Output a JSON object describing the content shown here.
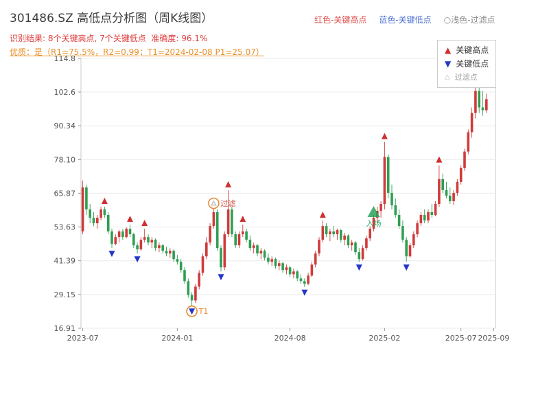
{
  "header": {
    "title": "301486.SZ 高低点分析图（周K线图）",
    "legend_high": "红色-关键高点",
    "legend_low": "蓝色-关键低点",
    "legend_filtered": "○浅色-过滤点",
    "result_line": "识别结果: 8个关键高点, 7个关键低点  准确度: 96.1%",
    "quality_line": "优质：是（R1=75.5%，R2=0.99；T1=2024-02-08 P1=25.07）"
  },
  "chart_legend": {
    "high": "关键高点",
    "low": "关键低点",
    "filtered": "过滤点"
  },
  "chart_data": {
    "type": "candlestick",
    "title": "301486.SZ 高低点分析图（周K线图）",
    "frequency": "weekly",
    "start_date": "2023-07",
    "weeks_span": 114,
    "ylim": [
      16.91,
      114.8
    ],
    "y_ticks": [
      "114.8",
      "102.6",
      "90.34",
      "78.10",
      "65.87",
      "53.63",
      "41.39",
      "29.15",
      "16.91"
    ],
    "x_ticks": [
      {
        "label": "2023-07",
        "week": 0
      },
      {
        "label": "2024-01",
        "week": 26
      },
      {
        "label": "2024-08",
        "week": 57
      },
      {
        "label": "2025-02",
        "week": 83
      },
      {
        "label": "2025-07",
        "week": 104
      },
      {
        "label": "2025-09",
        "week": 113
      }
    ],
    "colors": {
      "up": "#cf3b3b",
      "down": "#2f9e52",
      "key_high": "#d02f2f",
      "key_low": "#2438c8",
      "filtered": "#b9b9b9",
      "circle": "#e8872c",
      "entry": "#27a35a"
    },
    "candles": [
      [
        52,
        70.5,
        51,
        68
      ],
      [
        68,
        69,
        58,
        60
      ],
      [
        60,
        62,
        55,
        57
      ],
      [
        57,
        59,
        54,
        55
      ],
      [
        55,
        58,
        53,
        57
      ],
      [
        57,
        61,
        56,
        60
      ],
      [
        60,
        61,
        57,
        58
      ],
      [
        58,
        59,
        51,
        52
      ],
      [
        52,
        53,
        46,
        47.5
      ],
      [
        47.5,
        51,
        47,
        50
      ],
      [
        50,
        52.5,
        48,
        52
      ],
      [
        52,
        53,
        49,
        50
      ],
      [
        50,
        53.5,
        49.5,
        53
      ],
      [
        53,
        54.5,
        50,
        51
      ],
      [
        51,
        51.5,
        46,
        47
      ],
      [
        47,
        48,
        44,
        45.5
      ],
      [
        45.5,
        50,
        45,
        49
      ],
      [
        49,
        53,
        48,
        50
      ],
      [
        50,
        51,
        47,
        48
      ],
      [
        48,
        50,
        46,
        49
      ],
      [
        49,
        49.5,
        45,
        46
      ],
      [
        46,
        48,
        44.5,
        47
      ],
      [
        47,
        47.5,
        44,
        45
      ],
      [
        45,
        46.5,
        43,
        44
      ],
      [
        44,
        46,
        42.5,
        45
      ],
      [
        45,
        45.5,
        41,
        42
      ],
      [
        42,
        43.5,
        40,
        41
      ],
      [
        41,
        42,
        37,
        38
      ],
      [
        38,
        39,
        33,
        34
      ],
      [
        34,
        35,
        28,
        29
      ],
      [
        29,
        30,
        25.07,
        27
      ],
      [
        27,
        33,
        26,
        32
      ],
      [
        32,
        38,
        31,
        37
      ],
      [
        37,
        44,
        36,
        43
      ],
      [
        43,
        50,
        42,
        48
      ],
      [
        48,
        55,
        47,
        54
      ],
      [
        54,
        60.5,
        53,
        59
      ],
      [
        59,
        60,
        45,
        46
      ],
      [
        46,
        47,
        37.5,
        39
      ],
      [
        39,
        52,
        38,
        51
      ],
      [
        51,
        67,
        50,
        60
      ],
      [
        60,
        61,
        50,
        51
      ],
      [
        51,
        52,
        46,
        47
      ],
      [
        47,
        52,
        46,
        51
      ],
      [
        51,
        54.5,
        50,
        52
      ],
      [
        52,
        53,
        48,
        49
      ],
      [
        49,
        50.5,
        45,
        46
      ],
      [
        46,
        48,
        44,
        47
      ],
      [
        47,
        47.5,
        43,
        44
      ],
      [
        44,
        46,
        42,
        45
      ],
      [
        45,
        45.5,
        41.5,
        42.5
      ],
      [
        42.5,
        44,
        40,
        41
      ],
      [
        41,
        43,
        39.5,
        42
      ],
      [
        42,
        42.5,
        38.5,
        39.5
      ],
      [
        39.5,
        41.5,
        38,
        40.5
      ],
      [
        40.5,
        41,
        37,
        38
      ],
      [
        38,
        40,
        36.5,
        39
      ],
      [
        39,
        39.5,
        35.5,
        36.5
      ],
      [
        36.5,
        38.5,
        35,
        37.5
      ],
      [
        37.5,
        38,
        34,
        35
      ],
      [
        35,
        36.5,
        33,
        34
      ],
      [
        34,
        35,
        31.9,
        33
      ],
      [
        33,
        37,
        32.5,
        36
      ],
      [
        36,
        41,
        35.5,
        40
      ],
      [
        40,
        45,
        39,
        44
      ],
      [
        44,
        50,
        43,
        49
      ],
      [
        49,
        56,
        48,
        54
      ],
      [
        54,
        55,
        50,
        51
      ],
      [
        51,
        53,
        48.5,
        52
      ],
      [
        52,
        54,
        50,
        51
      ],
      [
        51,
        53,
        49,
        52.5
      ],
      [
        52.5,
        53,
        48,
        49
      ],
      [
        49,
        51.5,
        47,
        50.5
      ],
      [
        50.5,
        51,
        46,
        47
      ],
      [
        47,
        49,
        45,
        48
      ],
      [
        48,
        48.5,
        43.5,
        44.5
      ],
      [
        44.5,
        46,
        41,
        42
      ],
      [
        42,
        47,
        41.5,
        46
      ],
      [
        46,
        50.5,
        45,
        49.5
      ],
      [
        49.5,
        54,
        48.5,
        53
      ],
      [
        53,
        58,
        52,
        57
      ],
      [
        57,
        61,
        55,
        59.5
      ],
      [
        59.5,
        63,
        57,
        62
      ],
      [
        62,
        84.5,
        60,
        79
      ],
      [
        79,
        80,
        64,
        66
      ],
      [
        66,
        69,
        60,
        61.5
      ],
      [
        61.5,
        64,
        57,
        58
      ],
      [
        58,
        60,
        53,
        54
      ],
      [
        54,
        56,
        48,
        49
      ],
      [
        49,
        50,
        41,
        43
      ],
      [
        43,
        48,
        42.5,
        47
      ],
      [
        47,
        52,
        46,
        51
      ],
      [
        51,
        56,
        50,
        55
      ],
      [
        55,
        59,
        54,
        58
      ],
      [
        58,
        60,
        55,
        56
      ],
      [
        56,
        60,
        55,
        59
      ],
      [
        59,
        62,
        57,
        58
      ],
      [
        58,
        63,
        57.5,
        62
      ],
      [
        62,
        76,
        61,
        71
      ],
      [
        71,
        73,
        66,
        67
      ],
      [
        67,
        70,
        64,
        65
      ],
      [
        65,
        68,
        62,
        63
      ],
      [
        63,
        67,
        61.5,
        66
      ],
      [
        66,
        71,
        65,
        70
      ],
      [
        70,
        76,
        69,
        75
      ],
      [
        75,
        82,
        74,
        81
      ],
      [
        81,
        89,
        80,
        88
      ],
      [
        88,
        97,
        86,
        95
      ],
      [
        95,
        105,
        93,
        103
      ],
      [
        103,
        108,
        95,
        97
      ],
      [
        97,
        103,
        94,
        96
      ],
      [
        96,
        102,
        95,
        100
      ]
    ],
    "markers": {
      "key_highs": [
        {
          "week": 6,
          "price": 61
        },
        {
          "week": 13,
          "price": 54.5
        },
        {
          "week": 17,
          "price": 53
        },
        {
          "week": 40,
          "price": 67
        },
        {
          "week": 44,
          "price": 54.5
        },
        {
          "week": 66,
          "price": 56
        },
        {
          "week": 83,
          "price": 84.5
        },
        {
          "week": 98,
          "price": 76
        }
      ],
      "key_lows": [
        {
          "week": 8,
          "price": 46
        },
        {
          "week": 15,
          "price": 44
        },
        {
          "week": 30,
          "price": 25.07
        },
        {
          "week": 38,
          "price": 37.5
        },
        {
          "week": 61,
          "price": 31.9
        },
        {
          "week": 76,
          "price": 41
        },
        {
          "week": 89,
          "price": 41
        }
      ],
      "filtered_points": [
        {
          "week": 36,
          "price": 60.5,
          "label": "过滤"
        }
      ],
      "t1": {
        "week": 30,
        "price": 25.07,
        "label": "T1"
      },
      "entry": {
        "week": 80,
        "price": 59,
        "label": "入场"
      }
    }
  }
}
